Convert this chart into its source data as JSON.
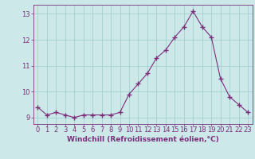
{
  "x": [
    0,
    1,
    2,
    3,
    4,
    5,
    6,
    7,
    8,
    9,
    10,
    11,
    12,
    13,
    14,
    15,
    16,
    17,
    18,
    19,
    20,
    21,
    22,
    23
  ],
  "y": [
    9.4,
    9.1,
    9.2,
    9.1,
    9.0,
    9.1,
    9.1,
    9.1,
    9.1,
    9.2,
    9.9,
    10.3,
    10.7,
    11.3,
    11.6,
    12.1,
    12.5,
    13.1,
    12.5,
    12.1,
    10.5,
    9.8,
    9.5,
    9.2
  ],
  "line_color": "#7b2f7b",
  "marker": "+",
  "marker_size": 4,
  "marker_lw": 1.0,
  "bg_color": "#cce8e8",
  "grid_color": "#99cccc",
  "xlabel": "Windchill (Refroidissement éolien,°C)",
  "xlim": [
    -0.5,
    23.5
  ],
  "ylim": [
    8.75,
    13.35
  ],
  "yticks": [
    9,
    10,
    11,
    12,
    13
  ],
  "xticks": [
    0,
    1,
    2,
    3,
    4,
    5,
    6,
    7,
    8,
    9,
    10,
    11,
    12,
    13,
    14,
    15,
    16,
    17,
    18,
    19,
    20,
    21,
    22,
    23
  ],
  "tick_color": "#7b2f7b",
  "label_color": "#7b2f7b",
  "label_fontsize": 6.5,
  "tick_fontsize": 6.0,
  "line_width": 0.8
}
